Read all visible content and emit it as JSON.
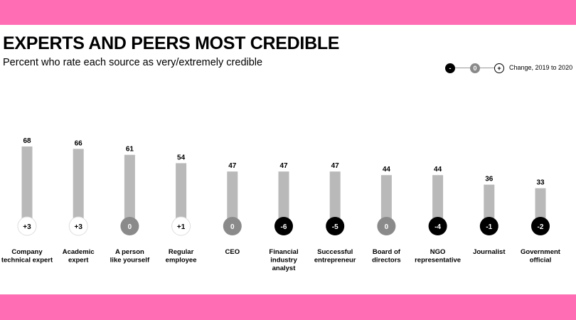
{
  "colors": {
    "band": "#ff6eb4",
    "bar": "#b9b9b9",
    "negative": "#000000",
    "zero": "#8a8a8a",
    "positive": "#ffffff"
  },
  "header": {
    "title": "EXPERTS AND PEERS MOST CREDIBLE",
    "subtitle": "Percent who rate each source as very/extremely credible"
  },
  "legend": {
    "negative_symbol": "-",
    "zero_symbol": "0",
    "positive_symbol": "+",
    "label": "Change, 2019 to 2020"
  },
  "chart_data": {
    "type": "bar",
    "title": "EXPERTS AND PEERS MOST CREDIBLE",
    "subtitle": "Percent who rate each source as very/extremely credible",
    "ylim": [
      0,
      68
    ],
    "grid": false,
    "legend_position": "top-right",
    "categories": [
      [
        "Company",
        "technical expert"
      ],
      [
        "Academic",
        "expert"
      ],
      [
        "A person",
        "like yourself"
      ],
      [
        "Regular",
        "employee"
      ],
      [
        "CEO"
      ],
      [
        "Financial",
        "industry",
        "analyst"
      ],
      [
        "Successful",
        "entrepreneur"
      ],
      [
        "Board of",
        "directors"
      ],
      [
        "NGO",
        "representative"
      ],
      [
        "Journalist"
      ],
      [
        "Government",
        "official"
      ]
    ],
    "values": [
      68,
      66,
      61,
      54,
      47,
      47,
      47,
      44,
      44,
      36,
      33
    ],
    "value_labels": [
      "68",
      "66",
      "61",
      "54",
      "47",
      "47",
      "47",
      "44",
      "44",
      "36",
      "33"
    ],
    "change": [
      3,
      3,
      0,
      1,
      0,
      -6,
      -5,
      0,
      -4,
      -1,
      -2
    ],
    "change_labels": [
      "+3",
      "+3",
      "0",
      "+1",
      "0",
      "-6",
      "-5",
      "0",
      "-4",
      "-1",
      "-2"
    ]
  }
}
